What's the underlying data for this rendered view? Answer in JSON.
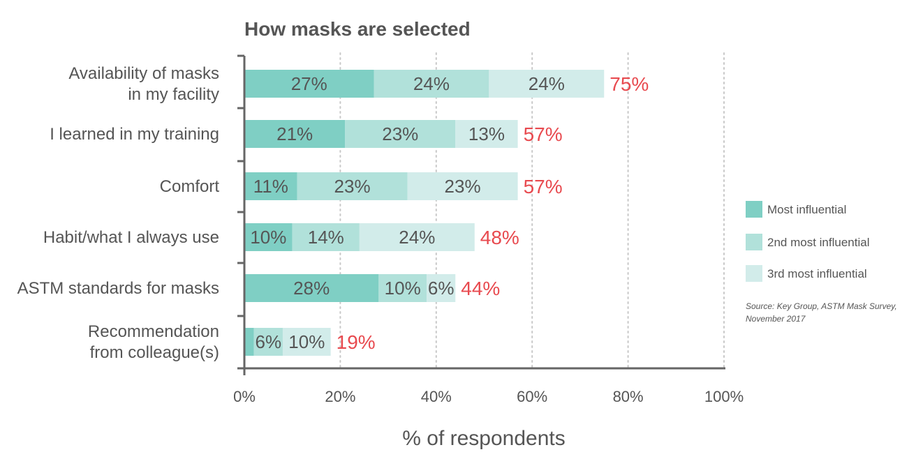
{
  "chart_data": {
    "type": "bar",
    "orientation": "horizontal",
    "stacked": true,
    "title": "How masks are selected",
    "xlabel": "% of respondents",
    "xlim": [
      0,
      100
    ],
    "xticks": [
      "0%",
      "20%",
      "40%",
      "60%",
      "80%",
      "100%"
    ],
    "grid": "vertical dotted",
    "legend_position": "right",
    "categories": [
      [
        "Availability of masks",
        "in my facility"
      ],
      [
        "I learned in my training"
      ],
      [
        "Comfort"
      ],
      [
        "Habit/what I always use"
      ],
      [
        "ASTM standards for masks"
      ],
      [
        "Recommendation",
        "from colleague(s)"
      ]
    ],
    "series": [
      {
        "name": "Most influential",
        "color": "#7fcfc4",
        "values": [
          27,
          21,
          11,
          10,
          28,
          2
        ],
        "labels": [
          "27%",
          "21%",
          "11%",
          "10%",
          "28%",
          ""
        ]
      },
      {
        "name": "2nd most influential",
        "color": "#b1e1da",
        "values": [
          24,
          23,
          23,
          14,
          10,
          6
        ],
        "labels": [
          "24%",
          "23%",
          "23%",
          "14%",
          "10%",
          "6%"
        ]
      },
      {
        "name": "3rd most influential",
        "color": "#d2ecea",
        "values": [
          24,
          13,
          23,
          24,
          6,
          10
        ],
        "labels": [
          "24%",
          "13%",
          "23%",
          "24%",
          "6%",
          "10%"
        ]
      }
    ],
    "totals": [
      "75%",
      "57%",
      "57%",
      "48%",
      "44%",
      "19%"
    ],
    "source": [
      "Source: Key Group, ASTM Mask Survey,",
      "November 2017"
    ]
  }
}
